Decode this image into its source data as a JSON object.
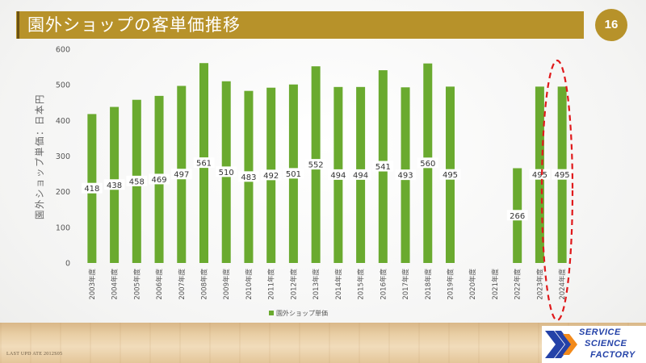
{
  "slide": {
    "title": "園外ショップの客単価推移",
    "page_number": "16",
    "footer_note": "LAST UPD ATE 2012S05",
    "logo": {
      "lines": [
        "SERVICE",
        "SCIENCE",
        "FACTORY"
      ],
      "colors": {
        "blue": "#2442a8",
        "orange": "#f28a1b"
      }
    }
  },
  "colors": {
    "title_band": "#b7922a",
    "bar": "#6aaa2f",
    "highlight": "#e0191b"
  },
  "chart_data": {
    "type": "bar",
    "ylabel": "園外ショップ単価：日本円",
    "ylim": [
      0,
      600
    ],
    "yticks": [
      "0",
      "100",
      "200",
      "300",
      "400",
      "500",
      "600"
    ],
    "grid": false,
    "legend": {
      "position": "bottom",
      "label": "園外ショップ単価"
    },
    "categories": [
      "2003年度",
      "2004年度",
      "2005年度",
      "2006年度",
      "2007年度",
      "2008年度",
      "2009年度",
      "2010年度",
      "2011年度",
      "2012年度",
      "2013年度",
      "2014年度",
      "2015年度",
      "2016年度",
      "2017年度",
      "2018年度",
      "2019年度",
      "2020年度",
      "2021年度",
      "2022年度",
      "2023年度",
      "2024年度"
    ],
    "series": [
      {
        "name": "園外ショップ単価",
        "values": [
          418,
          438,
          458,
          469,
          497,
          561,
          510,
          483,
          492,
          501,
          552,
          494,
          494,
          541,
          493,
          560,
          495,
          null,
          null,
          266,
          495,
          495
        ]
      }
    ],
    "highlight": {
      "category": "2024年度",
      "shape": "dashed ellipse"
    }
  }
}
